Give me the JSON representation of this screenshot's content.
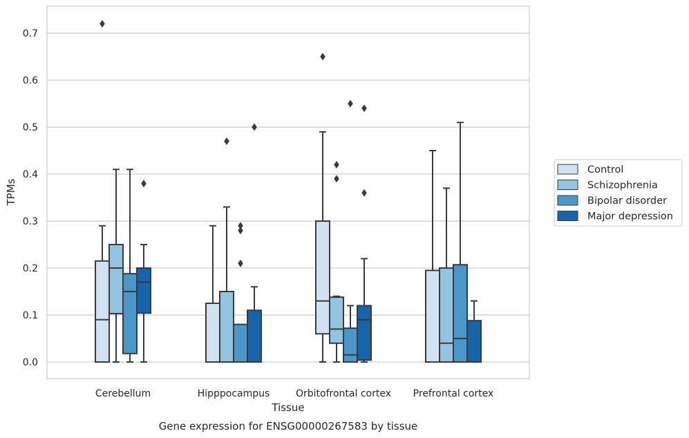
{
  "chart_data": {
    "type": "box",
    "xlabel": "Tissue",
    "ylabel": "TPMs",
    "caption": "Gene expression for ENSG00000267583 by tissue",
    "ylim": [
      -0.035,
      0.76
    ],
    "yticks": [
      "0.0",
      "0.1",
      "0.2",
      "0.3",
      "0.4",
      "0.5",
      "0.6",
      "0.7"
    ],
    "grid": true,
    "legend_position": "right",
    "categories": [
      "Cerebellum",
      "Hipppocampus",
      "Orbitofrontal cortex",
      "Prefrontal cortex"
    ],
    "series": [
      {
        "name": "Control",
        "color": "#d0e1f2",
        "boxes": [
          {
            "whislo": 0.0,
            "q1": 0.0,
            "med": 0.09,
            "q3": 0.215,
            "whishi": 0.29,
            "fliers": [
              0.72
            ]
          },
          {
            "whislo": 0.0,
            "q1": 0.0,
            "med": 0.0,
            "q3": 0.125,
            "whishi": 0.29,
            "fliers": []
          },
          {
            "whislo": 0.0,
            "q1": 0.06,
            "med": 0.13,
            "q3": 0.3,
            "whishi": 0.49,
            "fliers": [
              0.65
            ]
          },
          {
            "whislo": 0.0,
            "q1": 0.0,
            "med": 0.0,
            "q3": 0.195,
            "whishi": 0.45,
            "fliers": []
          }
        ]
      },
      {
        "name": "Schizophrenia",
        "color": "#94c4df",
        "boxes": [
          {
            "whislo": 0.0,
            "q1": 0.103,
            "med": 0.2,
            "q3": 0.25,
            "whishi": 0.41,
            "fliers": []
          },
          {
            "whislo": 0.0,
            "q1": 0.0,
            "med": 0.0,
            "q3": 0.15,
            "whishi": 0.33,
            "fliers": [
              0.47
            ]
          },
          {
            "whislo": 0.0,
            "q1": 0.04,
            "med": 0.07,
            "q3": 0.138,
            "whishi": 0.14,
            "fliers": [
              0.39,
              0.42
            ]
          },
          {
            "whislo": 0.0,
            "q1": 0.0,
            "med": 0.04,
            "q3": 0.2,
            "whishi": 0.37,
            "fliers": []
          }
        ]
      },
      {
        "name": "Bipolar disorder",
        "color": "#4a98c9",
        "boxes": [
          {
            "whislo": 0.0,
            "q1": 0.018,
            "med": 0.15,
            "q3": 0.188,
            "whishi": 0.41,
            "fliers": []
          },
          {
            "whislo": 0.0,
            "q1": 0.0,
            "med": 0.0,
            "q3": 0.08,
            "whishi": 0.08,
            "fliers": [
              0.21,
              0.28,
              0.29
            ]
          },
          {
            "whislo": 0.0,
            "q1": 0.0,
            "med": 0.015,
            "q3": 0.072,
            "whishi": 0.12,
            "fliers": [
              0.55
            ]
          },
          {
            "whislo": 0.0,
            "q1": 0.0,
            "med": 0.05,
            "q3": 0.207,
            "whishi": 0.51,
            "fliers": []
          }
        ]
      },
      {
        "name": "Major depression",
        "color": "#1764ab",
        "boxes": [
          {
            "whislo": 0.0,
            "q1": 0.104,
            "med": 0.17,
            "q3": 0.2,
            "whishi": 0.25,
            "fliers": [
              0.38
            ]
          },
          {
            "whislo": 0.0,
            "q1": 0.0,
            "med": 0.0,
            "q3": 0.11,
            "whishi": 0.16,
            "fliers": [
              0.5
            ]
          },
          {
            "whislo": 0.0,
            "q1": 0.004,
            "med": 0.09,
            "q3": 0.12,
            "whishi": 0.22,
            "fliers": [
              0.36,
              0.54
            ]
          },
          {
            "whislo": 0.0,
            "q1": 0.0,
            "med": 0.0,
            "q3": 0.088,
            "whishi": 0.13,
            "fliers": []
          }
        ]
      }
    ]
  },
  "colors": {
    "grid": "#cccccc",
    "frame": "#cccccc",
    "line": "#3a3a3a"
  }
}
